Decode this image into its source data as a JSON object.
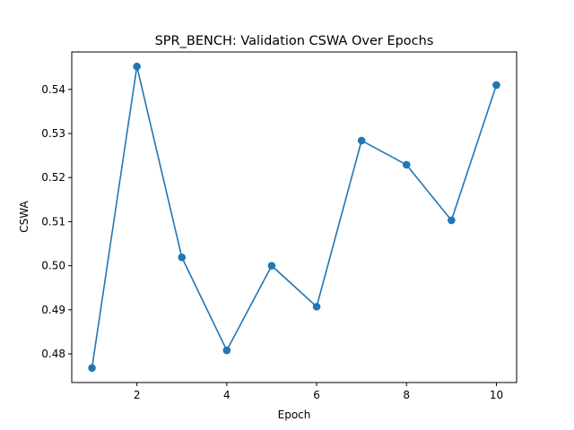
{
  "chart_data": {
    "type": "line",
    "title": "SPR_BENCH: Validation CSWA Over Epochs",
    "xlabel": "Epoch",
    "ylabel": "CSWA",
    "x": [
      1,
      2,
      3,
      4,
      5,
      6,
      7,
      8,
      9,
      10
    ],
    "series": [
      {
        "values": [
          0.4768,
          0.5452,
          0.5019,
          0.4808,
          0.5,
          0.4907,
          0.5284,
          0.5229,
          0.5103,
          0.541
        ],
        "color": "#1f77b4",
        "marker": "circle"
      }
    ],
    "xlim": [
      0.55,
      10.45
    ],
    "ylim": [
      0.4735,
      0.5485
    ],
    "xticks": [
      2,
      4,
      6,
      8,
      10
    ],
    "xtick_labels": [
      "2",
      "4",
      "6",
      "8",
      "10"
    ],
    "yticks": [
      0.48,
      0.49,
      0.5,
      0.51,
      0.52,
      0.53,
      0.54
    ],
    "ytick_labels": [
      "0.48",
      "0.49",
      "0.50",
      "0.51",
      "0.52",
      "0.53",
      "0.54"
    ],
    "grid": false,
    "legend": "none"
  }
}
